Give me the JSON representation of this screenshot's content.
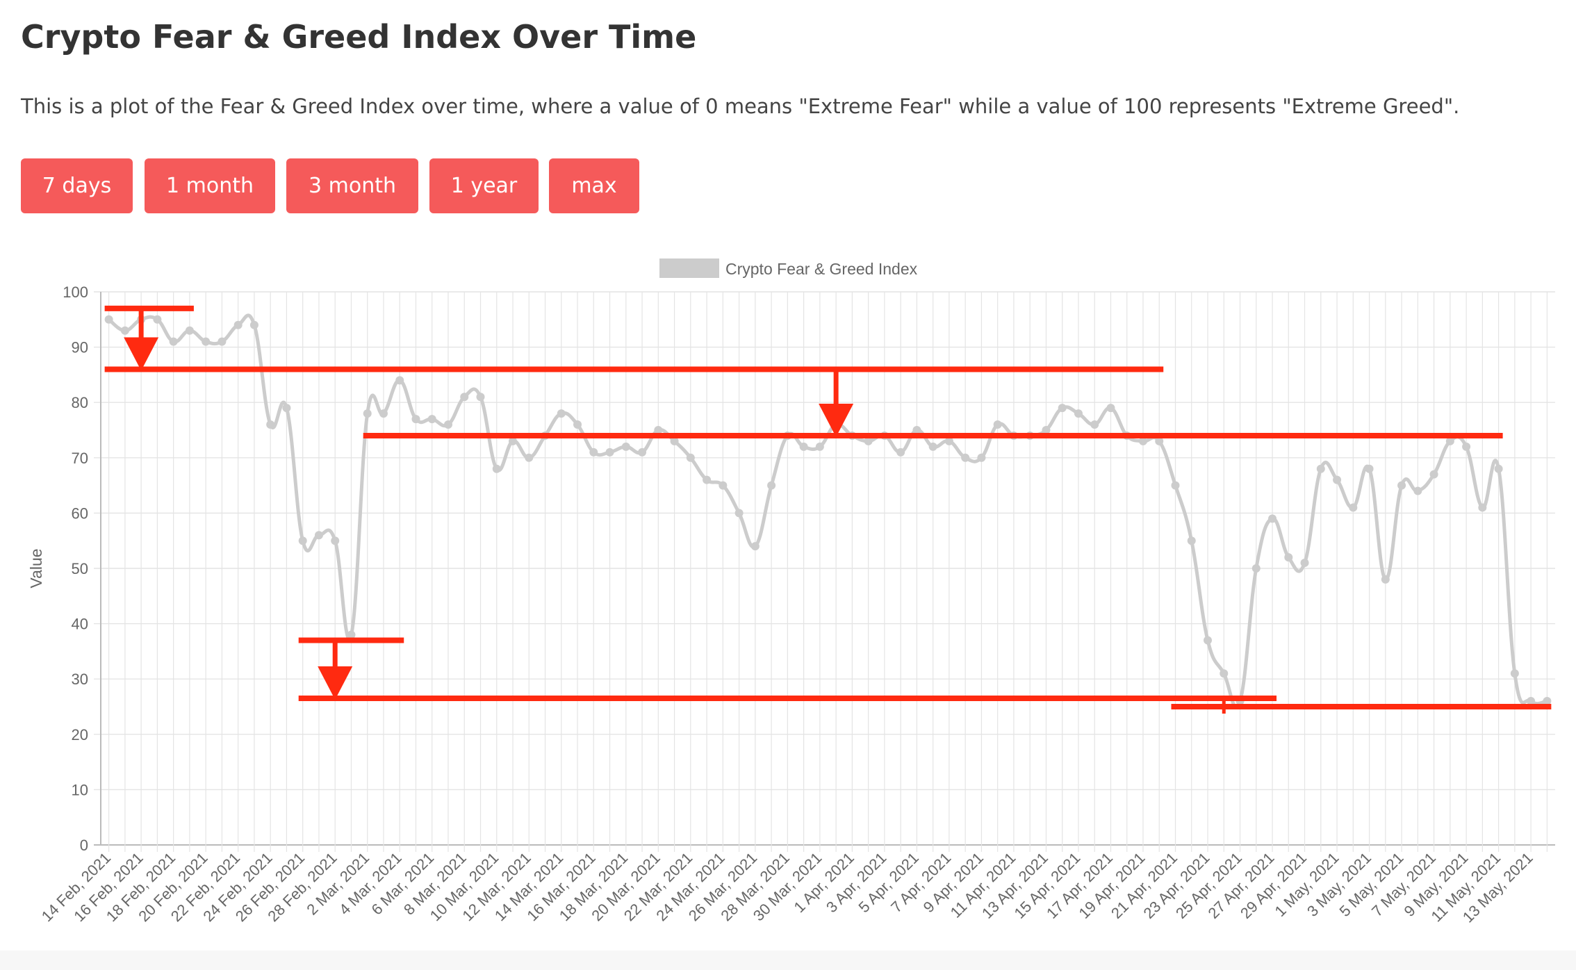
{
  "page": {
    "title": "Crypto Fear & Greed Index Over Time",
    "description": "This is a plot of the Fear & Greed Index over time, where a value of 0 means \"Extreme Fear\" while a value of 100 represents \"Extreme Greed\"."
  },
  "range_buttons": [
    "7 days",
    "1 month",
    "3 month",
    "1 year",
    "max"
  ],
  "colors": {
    "accent": "#f55a5a",
    "series_line": "#cccccc",
    "annotation": "#ff2a10",
    "grid": "#e4e4e4"
  },
  "chart_data": {
    "type": "line",
    "legend": {
      "label": "Crypto Fear & Greed Index",
      "position": "top"
    },
    "ylabel": "Value",
    "xlabel": "",
    "ylim": [
      0,
      100
    ],
    "yticks": [
      0,
      10,
      20,
      30,
      40,
      50,
      60,
      70,
      80,
      90,
      100
    ],
    "grid": true,
    "x_tick_labels": [
      "14 Feb, 2021",
      "16 Feb, 2021",
      "18 Feb, 2021",
      "20 Feb, 2021",
      "22 Feb, 2021",
      "24 Feb, 2021",
      "26 Feb, 2021",
      "28 Feb, 2021",
      "2 Mar, 2021",
      "4 Mar, 2021",
      "6 Mar, 2021",
      "8 Mar, 2021",
      "10 Mar, 2021",
      "12 Mar, 2021",
      "14 Mar, 2021",
      "16 Mar, 2021",
      "18 Mar, 2021",
      "20 Mar, 2021",
      "22 Mar, 2021",
      "24 Mar, 2021",
      "26 Mar, 2021",
      "28 Mar, 2021",
      "30 Mar, 2021",
      "1 Apr, 2021",
      "3 Apr, 2021",
      "5 Apr, 2021",
      "7 Apr, 2021",
      "9 Apr, 2021",
      "11 Apr, 2021",
      "13 Apr, 2021",
      "15 Apr, 2021",
      "17 Apr, 2021",
      "19 Apr, 2021",
      "21 Apr, 2021",
      "23 Apr, 2021",
      "25 Apr, 2021",
      "27 Apr, 2021",
      "29 Apr, 2021",
      "1 May, 2021",
      "3 May, 2021",
      "5 May, 2021",
      "7 May, 2021",
      "9 May, 2021",
      "11 May, 2021",
      "13 May, 2021"
    ],
    "series": [
      {
        "name": "Crypto Fear & Greed Index",
        "x": [
          "14 Feb, 2021",
          "15 Feb, 2021",
          "16 Feb, 2021",
          "17 Feb, 2021",
          "18 Feb, 2021",
          "19 Feb, 2021",
          "20 Feb, 2021",
          "21 Feb, 2021",
          "22 Feb, 2021",
          "23 Feb, 2021",
          "24 Feb, 2021",
          "25 Feb, 2021",
          "26 Feb, 2021",
          "27 Feb, 2021",
          "28 Feb, 2021",
          "1 Mar, 2021",
          "2 Mar, 2021",
          "3 Mar, 2021",
          "4 Mar, 2021",
          "5 Mar, 2021",
          "6 Mar, 2021",
          "7 Mar, 2021",
          "8 Mar, 2021",
          "9 Mar, 2021",
          "10 Mar, 2021",
          "11 Mar, 2021",
          "12 Mar, 2021",
          "13 Mar, 2021",
          "14 Mar, 2021",
          "15 Mar, 2021",
          "16 Mar, 2021",
          "17 Mar, 2021",
          "18 Mar, 2021",
          "19 Mar, 2021",
          "20 Mar, 2021",
          "21 Mar, 2021",
          "22 Mar, 2021",
          "23 Mar, 2021",
          "24 Mar, 2021",
          "25 Mar, 2021",
          "26 Mar, 2021",
          "27 Mar, 2021",
          "28 Mar, 2021",
          "29 Mar, 2021",
          "30 Mar, 2021",
          "31 Mar, 2021",
          "1 Apr, 2021",
          "2 Apr, 2021",
          "3 Apr, 2021",
          "4 Apr, 2021",
          "5 Apr, 2021",
          "6 Apr, 2021",
          "7 Apr, 2021",
          "8 Apr, 2021",
          "9 Apr, 2021",
          "10 Apr, 2021",
          "11 Apr, 2021",
          "12 Apr, 2021",
          "13 Apr, 2021",
          "14 Apr, 2021",
          "15 Apr, 2021",
          "16 Apr, 2021",
          "17 Apr, 2021",
          "18 Apr, 2021",
          "19 Apr, 2021",
          "20 Apr, 2021",
          "21 Apr, 2021",
          "22 Apr, 2021",
          "23 Apr, 2021",
          "24 Apr, 2021",
          "25 Apr, 2021",
          "26 Apr, 2021",
          "27 Apr, 2021",
          "28 Apr, 2021",
          "29 Apr, 2021",
          "30 Apr, 2021",
          "1 May, 2021",
          "2 May, 2021",
          "3 May, 2021",
          "4 May, 2021",
          "5 May, 2021",
          "6 May, 2021",
          "7 May, 2021",
          "8 May, 2021",
          "9 May, 2021",
          "10 May, 2021",
          "11 May, 2021",
          "12 May, 2021",
          "13 May, 2021",
          "14 May, 2021"
        ],
        "values": [
          95,
          93,
          95,
          95,
          91,
          93,
          91,
          91,
          94,
          94,
          76,
          79,
          55,
          56,
          55,
          38,
          78,
          78,
          84,
          77,
          77,
          76,
          81,
          81,
          68,
          73,
          70,
          74,
          78,
          76,
          71,
          71,
          72,
          71,
          75,
          73,
          70,
          66,
          65,
          60,
          54,
          65,
          74,
          72,
          72,
          76,
          74,
          73,
          74,
          71,
          75,
          72,
          73,
          70,
          70,
          76,
          74,
          74,
          75,
          79,
          78,
          76,
          79,
          74,
          73,
          73,
          65,
          55,
          37,
          31,
          26,
          50,
          59,
          52,
          51,
          68,
          66,
          61,
          68,
          48,
          65,
          64,
          67,
          73,
          72,
          61,
          68,
          31,
          26,
          26
        ]
      }
    ],
    "annotations": [
      {
        "type": "level",
        "value": 97,
        "from": "14 Feb, 2021",
        "to": "19 Feb, 2021"
      },
      {
        "type": "level",
        "value": 86,
        "from": "14 Feb, 2021",
        "to": "20 Apr, 2021"
      },
      {
        "type": "level",
        "value": 74,
        "from": "2 Mar, 2021",
        "to": "11 May, 2021"
      },
      {
        "type": "level",
        "value": 37,
        "from": "26 Feb, 2021",
        "to": "4 Mar, 2021"
      },
      {
        "type": "level",
        "value": 26.5,
        "from": "26 Feb, 2021",
        "to": "27 Apr, 2021"
      },
      {
        "type": "level",
        "value": 25,
        "from": "21 Apr, 2021",
        "to": "14 May, 2021"
      },
      {
        "type": "arrow_down",
        "at": "16 Feb, 2021",
        "from": 97,
        "to": 86
      },
      {
        "type": "arrow_down",
        "at": "31 Mar, 2021",
        "from": 86,
        "to": 74
      },
      {
        "type": "arrow_down",
        "at": "28 Feb, 2021",
        "from": 37,
        "to": 26.5
      },
      {
        "type": "marker",
        "at": "24 Apr, 2021",
        "from": 25,
        "to": 26.5
      }
    ]
  }
}
